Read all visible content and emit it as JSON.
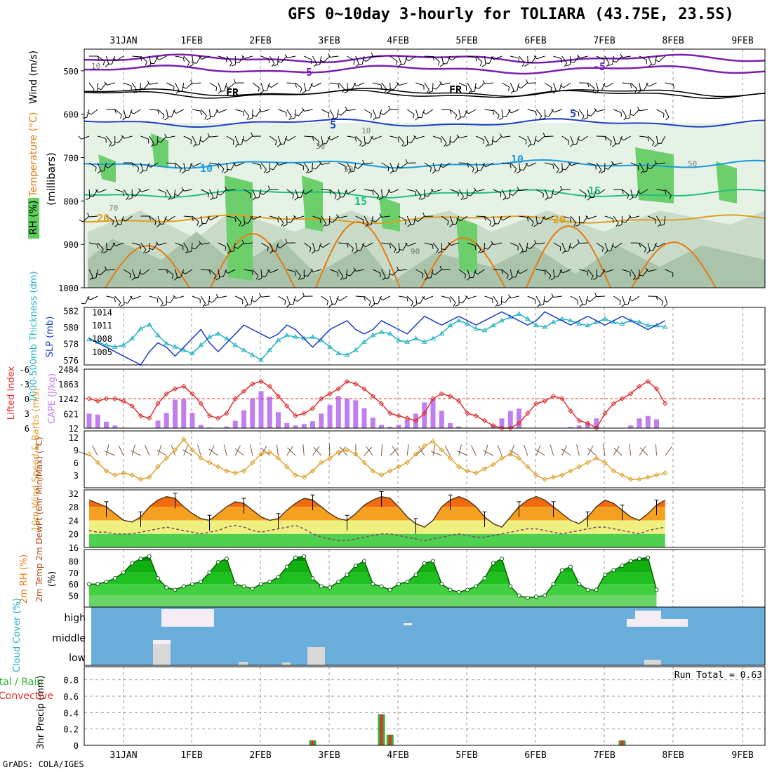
{
  "title": "GFS 0~10day 3-hourly for TOLIARA (43.75E, 23.5S)",
  "footer": "GrADS: COLA/IGES",
  "dates": [
    "31JAN",
    "1FEB",
    "2FEB",
    "3FEB",
    "4FEB",
    "5FEB",
    "6FEB",
    "7FEB",
    "8FEB",
    "9FEB"
  ],
  "colors": {
    "rh": "#5fcf5f",
    "temp_warm": "#e87a10",
    "temp_cold": "#7a1fb0",
    "slp": "#1e3ec8",
    "thick": "#22b3c0",
    "li": "#e03030",
    "cape": "#c07ef0",
    "wind": "#e0a030",
    "rh2m": "#00c800",
    "cloud": "#6aaedb",
    "precip": "#30b030",
    "conv": "#e03030"
  },
  "chart_data": [
    {
      "type": "contour",
      "panel": "upper_air",
      "ylabel_rh": "RH (%)",
      "ylabel_temp": "Temperature (°C)",
      "ylabel_wind": "Wind (m/s)",
      "ylabel_units": "(millibars)",
      "y_ticks": [
        "500",
        "600",
        "700",
        "800",
        "900",
        "1000"
      ],
      "temp_contour_labels": [
        "-5",
        "-5",
        "FR",
        "FR",
        "5",
        "5",
        "10",
        "10",
        "15",
        "15",
        "20",
        "20"
      ],
      "rh_contour_labels": [
        "10",
        "10",
        "30",
        "50",
        "50",
        "70",
        "90"
      ]
    },
    {
      "type": "line",
      "panel": "slp_thickness",
      "ylabel_left": "1000-500mb Thickness (dm)",
      "ylabel_right": "SLP (mb)",
      "left_ticks": [
        "582",
        "580",
        "578",
        "576"
      ],
      "right_ticks": [
        "1014",
        "1011",
        "1008",
        "1005"
      ],
      "series": [
        {
          "name": "SLP",
          "values": [
            1008,
            1007,
            1006,
            1005,
            1004,
            1003,
            1002,
            1005,
            1007,
            1006,
            1004,
            1006,
            1008,
            1010,
            1007,
            1005,
            1007,
            1009,
            1011,
            1010,
            1009,
            1008,
            1009,
            1011,
            1010,
            1008,
            1006,
            1008,
            1010,
            1011,
            1012,
            1010,
            1009,
            1010,
            1012,
            1011,
            1010,
            1009,
            1011,
            1013,
            1012,
            1011,
            1012,
            1013,
            1012,
            1011,
            1012,
            1013,
            1014,
            1013,
            1012,
            1011,
            1012,
            1014,
            1013,
            1012,
            1011,
            1012,
            1013,
            1012,
            1011,
            1012,
            1013,
            1012,
            1011,
            1010,
            1011,
            1012
          ]
        },
        {
          "name": "Thickness",
          "values": [
            578.5,
            578.2,
            577.8,
            577.6,
            577.8,
            578.6,
            579.8,
            580.3,
            579.0,
            578.0,
            577.6,
            577.2,
            576.8,
            577.8,
            578.8,
            579.2,
            578.6,
            577.8,
            577.2,
            576.6,
            576.0,
            577.2,
            578.4,
            579.0,
            578.8,
            578.6,
            578.8,
            578.4,
            577.6,
            576.8,
            576.6,
            577.2,
            578.2,
            579.0,
            579.4,
            579.2,
            578.4,
            578.2,
            578.6,
            578.2,
            578.6,
            579.2,
            580.2,
            580.8,
            580.4,
            579.8,
            579.6,
            580.2,
            580.8,
            581.2,
            581.6,
            581.0,
            580.2,
            580.0,
            580.6,
            581.0,
            580.8,
            580.4,
            580.2,
            580.6,
            581.0,
            580.6,
            580.4,
            580.8,
            580.6,
            580.2,
            580.2,
            580.0
          ]
        }
      ]
    },
    {
      "type": "bar",
      "panel": "cape_li",
      "ylabel_left": "Lifted Index",
      "ylabel_right": "CAPE (J/kg)",
      "left_ticks": [
        "-6",
        "-3",
        "0",
        "3",
        "6"
      ],
      "right_ticks": [
        "2484",
        "1863",
        "1242",
        "621",
        "12"
      ],
      "series": [
        {
          "name": "CAPE",
          "values": [
            620,
            580,
            280,
            120,
            30,
            12,
            12,
            12,
            330,
            650,
            1200,
            1230,
            650,
            150,
            40,
            12,
            80,
            320,
            760,
            1260,
            1560,
            1330,
            680,
            220,
            120,
            180,
            300,
            620,
            980,
            1350,
            1250,
            1180,
            850,
            450,
            150,
            70,
            150,
            370,
            620,
            1090,
            1230,
            740,
            220,
            80,
            30,
            12,
            20,
            120,
            420,
            730,
            830,
            12,
            12,
            12,
            12,
            12,
            60,
            120,
            250,
            420,
            12,
            12,
            20,
            120,
            420,
            520,
            380,
            12
          ]
        },
        {
          "name": "LI",
          "values": [
            0,
            0.5,
            0,
            0,
            0.5,
            1.5,
            3.5,
            4,
            1,
            -1,
            -2,
            -2.5,
            -1,
            1,
            3.5,
            4,
            3,
            0,
            -1.5,
            -3,
            -3.5,
            -2.5,
            -0.5,
            1.5,
            3.5,
            3,
            2,
            0,
            -1,
            -2,
            -3.5,
            -3,
            -2,
            -0.5,
            1,
            3,
            3.5,
            4,
            4.5,
            3,
            0,
            -1,
            -0.5,
            0.5,
            3,
            3.5,
            4.5,
            5.5,
            6,
            6,
            5,
            3,
            1,
            0.5,
            -0.5,
            0,
            2.5,
            4.5,
            5,
            6,
            3,
            1,
            0,
            -1,
            -2.5,
            -3.5,
            -2,
            1
          ]
        }
      ]
    },
    {
      "type": "line",
      "panel": "wind10m",
      "ylabel": "10m Wind Speed & Barbs (m/s)",
      "y_ticks": [
        "12",
        "9",
        "6",
        "3"
      ],
      "series": [
        {
          "name": "10m Wind Speed",
          "values": [
            8,
            6,
            4,
            3,
            3.5,
            3,
            2,
            2.5,
            5,
            7,
            9,
            11.5,
            9,
            7,
            6,
            5,
            4,
            3.5,
            4,
            6,
            8,
            8.5,
            7,
            5,
            3,
            2.5,
            4,
            6,
            7,
            8.5,
            9,
            8,
            6,
            4,
            3,
            4,
            5,
            6,
            8,
            10,
            11,
            9,
            7,
            5,
            4,
            3.5,
            4.5,
            5.5,
            7,
            8,
            7,
            5,
            3,
            2,
            2.5,
            3,
            4,
            5,
            6,
            7,
            6,
            4,
            3,
            2,
            2,
            2.5,
            3,
            3.5
          ]
        }
      ]
    },
    {
      "type": "area",
      "panel": "temp2m",
      "ylabel": "2m Temp 2m DewPt (6hr Min/Max) (°C)",
      "y_ticks": [
        "32",
        "28",
        "24",
        "20",
        "16"
      ],
      "series": [
        {
          "name": "Temp",
          "values": [
            30,
            29,
            28,
            26,
            24,
            23.5,
            25,
            28,
            30,
            31,
            30.5,
            28,
            26,
            24.5,
            24,
            26,
            28,
            29.5,
            29,
            27,
            25,
            24,
            24.5,
            27,
            29,
            30.5,
            30,
            28,
            26,
            24.5,
            24,
            26,
            28.5,
            30,
            31,
            30.5,
            28,
            25,
            23,
            22,
            24,
            28,
            30,
            31,
            30,
            28,
            25,
            23,
            22,
            25,
            28,
            30,
            31,
            30,
            28,
            26,
            24,
            23,
            25,
            28,
            30,
            29,
            27,
            25,
            24,
            26,
            28.5,
            30
          ]
        },
        {
          "name": "DewPt",
          "values": [
            21,
            20.5,
            20.5,
            20,
            20,
            20,
            20.5,
            21,
            21.5,
            22,
            21.5,
            21,
            20.5,
            20,
            20.5,
            21,
            22,
            22.5,
            22,
            21,
            20.5,
            21,
            21.5,
            22,
            22.5,
            21.5,
            20,
            19,
            18.5,
            18,
            18,
            18.5,
            19,
            19.5,
            20,
            20,
            19.5,
            19,
            18.5,
            18,
            18.5,
            19,
            19.5,
            20,
            19.5,
            19,
            19,
            19.5,
            20,
            20.5,
            21,
            21.5,
            21.5,
            21,
            20.5,
            20,
            20.5,
            21,
            21.5,
            22,
            22,
            21.5,
            21,
            20.5,
            20,
            21,
            21.5,
            22
          ]
        }
      ]
    },
    {
      "type": "area",
      "panel": "rh2m",
      "ylabel": "2m RH (%)",
      "y_ticks": [
        "80",
        "70",
        "60",
        "50"
      ],
      "series": [
        {
          "name": "2m RH",
          "values": [
            60,
            60,
            62,
            65,
            70,
            78,
            82,
            84,
            65,
            57,
            55,
            58,
            60,
            62,
            70,
            79,
            82,
            60,
            58,
            56,
            60,
            62,
            66,
            75,
            83,
            84,
            65,
            58,
            57,
            62,
            68,
            76,
            80,
            60,
            58,
            55,
            60,
            62,
            68,
            78,
            80,
            60,
            55,
            53,
            55,
            58,
            65,
            78,
            82,
            58,
            50,
            48,
            49,
            50,
            60,
            72,
            75,
            60,
            55,
            55,
            68,
            72,
            76,
            80,
            82,
            83,
            55
          ]
        }
      ]
    },
    {
      "type": "heatmap",
      "panel": "cloud",
      "ylabel": "Cloud Cover (%)",
      "rows": [
        "high",
        "middle",
        "low"
      ]
    },
    {
      "type": "bar",
      "panel": "precip",
      "ylabel": "3hr Precip (mm)",
      "ylabel_legend_total": "Total / Rain",
      "ylabel_legend_conv": "Convective",
      "y_ticks": [
        "0.8",
        "0.6",
        "0.4",
        "0.2",
        "0"
      ],
      "run_total": "Run Total = 0.63",
      "series": [
        {
          "name": "Total",
          "values": [
            0,
            0,
            0,
            0,
            0,
            0,
            0,
            0,
            0,
            0,
            0,
            0,
            0,
            0,
            0,
            0,
            0,
            0,
            0,
            0,
            0,
            0,
            0,
            0,
            0,
            0,
            0.06,
            0,
            0,
            0,
            0,
            0,
            0,
            0,
            0.38,
            0.13,
            0,
            0,
            0,
            0,
            0,
            0,
            0,
            0,
            0,
            0,
            0,
            0,
            0,
            0,
            0,
            0,
            0,
            0,
            0,
            0,
            0,
            0,
            0,
            0,
            0,
            0,
            0.06,
            0,
            0,
            0,
            0,
            0
          ]
        }
      ]
    }
  ]
}
